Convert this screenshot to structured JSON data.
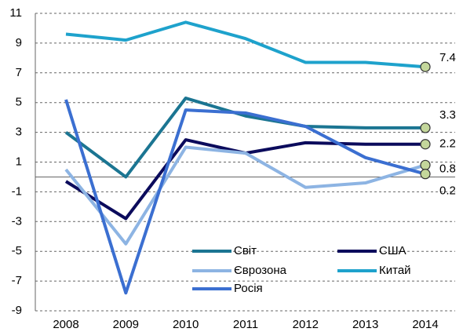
{
  "chart_data": {
    "type": "line",
    "categories": [
      "2008",
      "2009",
      "2010",
      "2011",
      "2012",
      "2013",
      "2014"
    ],
    "series": [
      {
        "name": "Світ",
        "color": "#1b7592",
        "values": [
          3.0,
          0.0,
          5.3,
          4.1,
          3.4,
          3.3,
          3.3
        ]
      },
      {
        "name": "США",
        "color": "#0b0b5c",
        "values": [
          -0.3,
          -2.8,
          2.5,
          1.6,
          2.3,
          2.2,
          2.2
        ]
      },
      {
        "name": "Єврозона",
        "color": "#8db4e3",
        "values": [
          0.5,
          -4.5,
          2.0,
          1.6,
          -0.7,
          -0.4,
          0.8
        ]
      },
      {
        "name": "Китай",
        "color": "#1ea2cc",
        "values": [
          9.6,
          9.2,
          10.4,
          9.3,
          7.7,
          7.7,
          7.4
        ]
      },
      {
        "name": "Росія",
        "color": "#3b6fd1",
        "values": [
          5.2,
          -7.8,
          4.5,
          4.3,
          3.4,
          1.3,
          0.2
        ]
      }
    ],
    "ylim": [
      -9,
      11
    ],
    "yticks": [
      -9,
      -7,
      -5,
      -3,
      -1,
      1,
      3,
      5,
      7,
      9,
      11
    ],
    "grid": true
  }
}
